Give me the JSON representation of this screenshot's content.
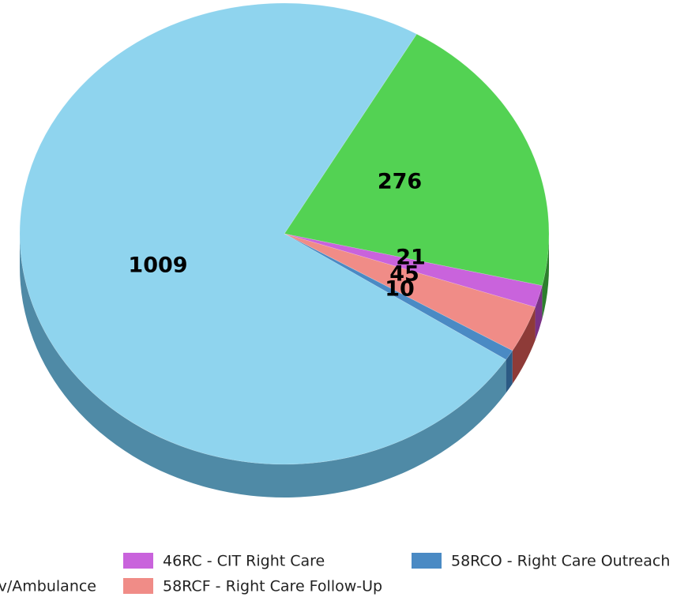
{
  "chart_data": {
    "type": "pie",
    "title": "",
    "style": "3d",
    "slices": [
      {
        "label": "…v/Ambulance",
        "value": 1009,
        "color": "#8fd4ee",
        "dark": "#4f8aa6"
      },
      {
        "label": "",
        "value": 276,
        "color": "#53d253",
        "dark": "#2d7f2d"
      },
      {
        "label": "46RC - CIT Right Care",
        "value": 21,
        "color": "#c963dc",
        "dark": "#7a3286"
      },
      {
        "label": "58RCF - Right Care Follow-Up",
        "value": 45,
        "color": "#f08c87",
        "dark": "#8e3b38"
      },
      {
        "label": "58RCO - Right Care Outreach",
        "value": 10,
        "color": "#4a8ac4",
        "dark": "#2c5a84"
      }
    ],
    "legend": [
      {
        "label": "46RC - CIT Right Care",
        "color": "#c963dc"
      },
      {
        "label": "58RCO - Right Care Outreach",
        "color": "#4a8ac4"
      },
      {
        "label": "v/Ambulance",
        "color": "#8fd4ee"
      },
      {
        "label": "58RCF - Right Care Follow-Up",
        "color": "#f08c87"
      }
    ],
    "legend_position": "bottom"
  }
}
